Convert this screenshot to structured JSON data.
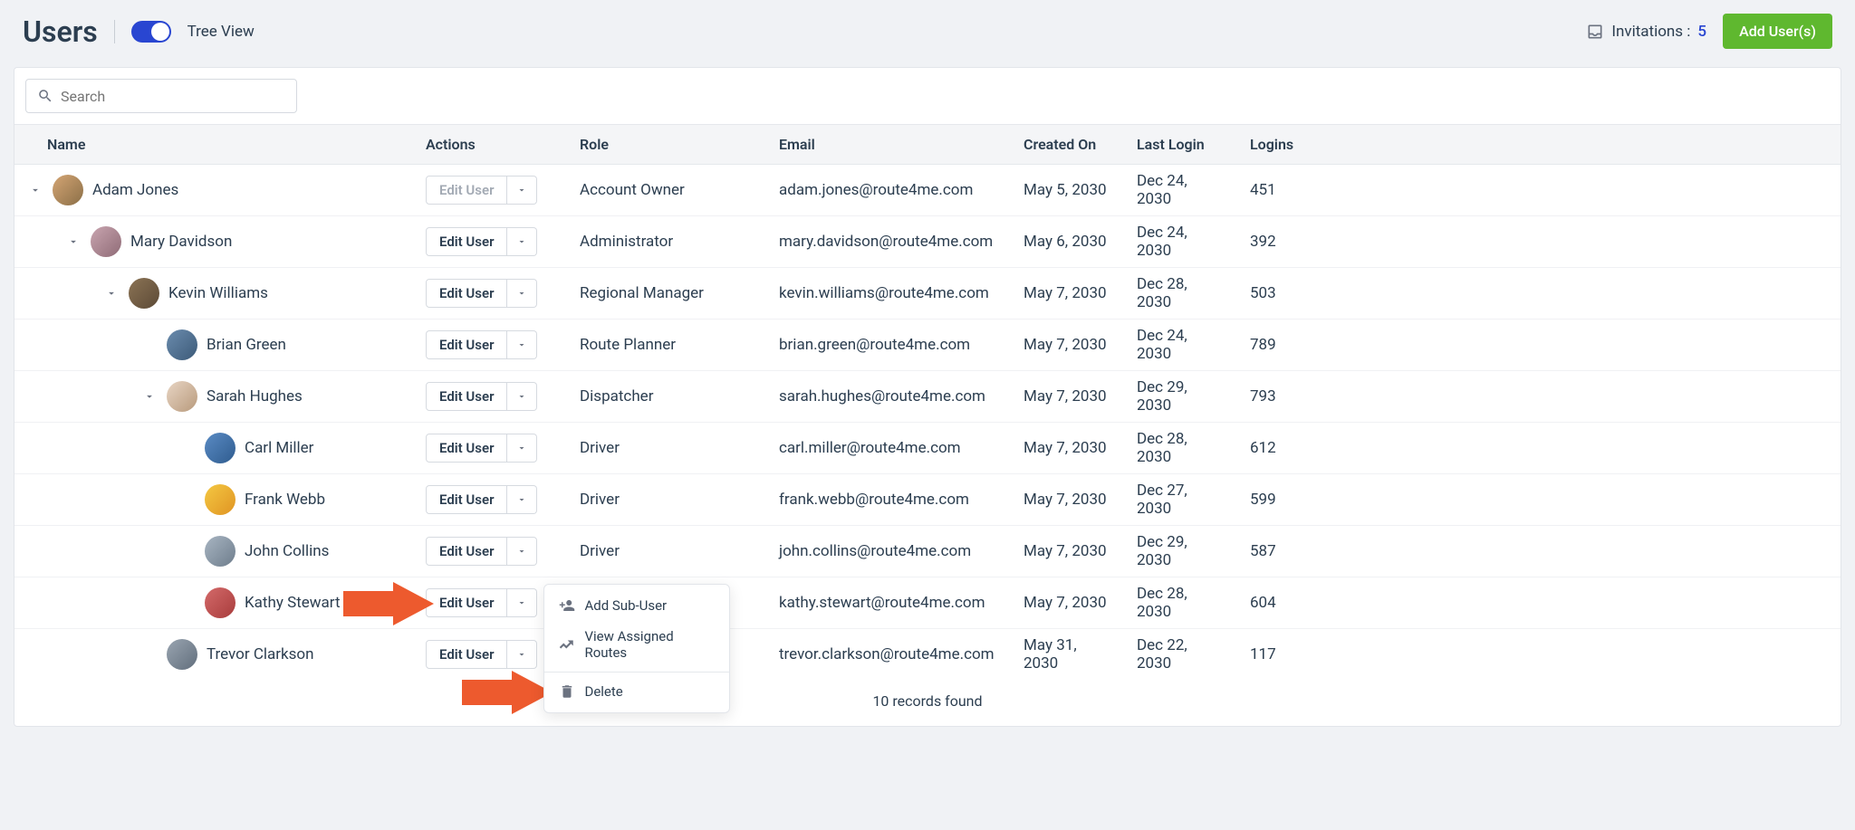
{
  "header": {
    "title": "Users",
    "tree_view_label": "Tree View",
    "invitations_label": "Invitations :",
    "invitations_count": "5",
    "add_users_label": "Add User(s)"
  },
  "search": {
    "placeholder": "Search"
  },
  "columns": {
    "name": "Name",
    "actions": "Actions",
    "role": "Role",
    "email": "Email",
    "created_on": "Created On",
    "last_login": "Last Login",
    "logins": "Logins"
  },
  "rows": [
    {
      "name": "Adam Jones",
      "role": "Account Owner",
      "email": "adam.jones@route4me.com",
      "created": "May 5, 2030",
      "last": "Dec 24, 2030",
      "logins": "451",
      "indent": 0,
      "chev": true,
      "disabled": true,
      "av": "av1"
    },
    {
      "name": "Mary Davidson",
      "role": "Administrator",
      "email": "mary.davidson@route4me.com",
      "created": "May 6, 2030",
      "last": "Dec 24, 2030",
      "logins": "392",
      "indent": 1,
      "chev": true,
      "disabled": false,
      "av": "av2"
    },
    {
      "name": "Kevin Williams",
      "role": "Regional Manager",
      "email": "kevin.williams@route4me.com",
      "created": "May 7, 2030",
      "last": "Dec 28, 2030",
      "logins": "503",
      "indent": 2,
      "chev": true,
      "disabled": false,
      "av": "av3"
    },
    {
      "name": "Brian Green",
      "role": "Route Planner",
      "email": "brian.green@route4me.com",
      "created": "May 7, 2030",
      "last": "Dec 24, 2030",
      "logins": "789",
      "indent": 3,
      "chev": false,
      "disabled": false,
      "av": "av4"
    },
    {
      "name": "Sarah Hughes",
      "role": "Dispatcher",
      "email": "sarah.hughes@route4me.com",
      "created": "May 7, 2030",
      "last": "Dec 29, 2030",
      "logins": "793",
      "indent": 3,
      "chev": true,
      "disabled": false,
      "av": "av5"
    },
    {
      "name": "Carl Miller",
      "role": "Driver",
      "email": "carl.miller@route4me.com",
      "created": "May 7, 2030",
      "last": "Dec 28, 2030",
      "logins": "612",
      "indent": 4,
      "chev": false,
      "disabled": false,
      "av": "av6"
    },
    {
      "name": "Frank Webb",
      "role": "Driver",
      "email": "frank.webb@route4me.com",
      "created": "May 7, 2030",
      "last": "Dec 27, 2030",
      "logins": "599",
      "indent": 4,
      "chev": false,
      "disabled": false,
      "av": "av7"
    },
    {
      "name": "John Collins",
      "role": "Driver",
      "email": "john.collins@route4me.com",
      "created": "May 7, 2030",
      "last": "Dec 29, 2030",
      "logins": "587",
      "indent": 4,
      "chev": false,
      "disabled": false,
      "av": "av8"
    },
    {
      "name": "Kathy Stewart",
      "role": "",
      "email": "kathy.stewart@route4me.com",
      "created": "May 7, 2030",
      "last": "Dec 28, 2030",
      "logins": "604",
      "indent": 4,
      "chev": false,
      "disabled": false,
      "av": "av9",
      "dropdown_open": true
    },
    {
      "name": "Trevor Clarkson",
      "role": "",
      "email": "trevor.clarkson@route4me.com",
      "created": "May 31, 2030",
      "last": "Dec 22, 2030",
      "logins": "117",
      "indent": 3,
      "chev": false,
      "disabled": false,
      "av": "av10"
    }
  ],
  "edit_user_label": "Edit User",
  "records_found": "10 records found",
  "menu": {
    "add_sub_user": "Add Sub-User",
    "view_routes": "View Assigned Routes",
    "delete": "Delete"
  },
  "arrow_color": "#ed5a2e"
}
